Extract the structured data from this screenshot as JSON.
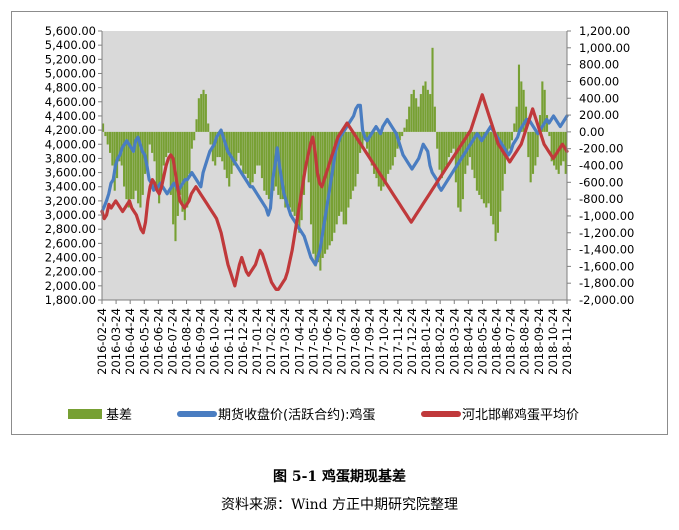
{
  "caption": "图 5-1  鸡蛋期现基差",
  "source": "资料来源：Wind  方正中期研究院整理",
  "chart_data": {
    "type": "line",
    "left_axis": {
      "min": 1800,
      "max": 5600,
      "step": 200,
      "tick_labels": [
        "1,800.00",
        "2,000.00",
        "2,200.00",
        "2,400.00",
        "2,600.00",
        "2,800.00",
        "3,000.00",
        "3,200.00",
        "3,400.00",
        "3,600.00",
        "3,800.00",
        "4,000.00",
        "4,200.00",
        "4,400.00",
        "4,600.00",
        "4,800.00",
        "5,000.00",
        "5,200.00",
        "5,400.00",
        "5,600.00"
      ]
    },
    "right_axis": {
      "min": -2000,
      "max": 1200,
      "step": 200,
      "tick_labels": [
        "-2,000.00",
        "-1,800.00",
        "-1,600.00",
        "-1,400.00",
        "-1,200.00",
        "-1,000.00",
        "-800.00",
        "-600.00",
        "-400.00",
        "-200.00",
        "0.00",
        "200.00",
        "400.00",
        "600.00",
        "800.00",
        "1,000.00",
        "1,200.00"
      ]
    },
    "x_labels": [
      "2016-02-24",
      "2016-03-24",
      "2016-04-24",
      "2016-05-24",
      "2016-06-24",
      "2016-07-24",
      "2016-08-24",
      "2016-09-24",
      "2016-10-24",
      "2016-11-24",
      "2016-12-24",
      "2017-01-24",
      "2017-02-24",
      "2017-03-24",
      "2017-04-24",
      "2017-05-24",
      "2017-06-24",
      "2017-07-24",
      "2017-08-24",
      "2017-09-24",
      "2017-10-24",
      "2017-11-24",
      "2017-12-24",
      "2018-01-24",
      "2018-02-24",
      "2018-03-24",
      "2018-04-24",
      "2018-05-24",
      "2018-06-24",
      "2018-07-24",
      "2018-08-24",
      "2018-09-24",
      "2018-10-24",
      "2018-11-24"
    ],
    "series": [
      {
        "name": "基差",
        "type": "bar",
        "axis": "right",
        "color": "#77a033",
        "values": [
          100,
          -50,
          -150,
          -250,
          -400,
          -700,
          -550,
          -350,
          -400,
          -650,
          -800,
          -900,
          -800,
          -800,
          -700,
          -850,
          -900,
          -750,
          -500,
          -400,
          -150,
          -250,
          -350,
          -650,
          -850,
          -650,
          -400,
          -300,
          -250,
          -750,
          -1100,
          -1300,
          -1000,
          -750,
          -950,
          -1050,
          -900,
          -500,
          -200,
          -100,
          150,
          400,
          450,
          500,
          450,
          100,
          -150,
          -350,
          -400,
          -300,
          -300,
          -350,
          -450,
          -550,
          -650,
          -500,
          -400,
          -350,
          -250,
          -400,
          -500,
          -500,
          -550,
          -650,
          -600,
          -500,
          -400,
          -400,
          -550,
          -700,
          -750,
          -800,
          -750,
          -700,
          -650,
          -750,
          -800,
          -800,
          -900,
          -850,
          -900,
          -950,
          -1000,
          -1150,
          -1200,
          -1050,
          -750,
          -350,
          -600,
          -1100,
          -1450,
          -1600,
          -1550,
          -1650,
          -1500,
          -1450,
          -1400,
          -1350,
          -1300,
          -1200,
          -1100,
          -1000,
          -950,
          -1100,
          -1100,
          -900,
          -800,
          -700,
          -650,
          -500,
          -250,
          -200,
          -100,
          -200,
          -300,
          -400,
          -500,
          -550,
          -650,
          -700,
          -650,
          -600,
          -500,
          -450,
          -400,
          -300,
          -200,
          -100,
          -50,
          50,
          150,
          300,
          450,
          500,
          400,
          300,
          450,
          550,
          600,
          500,
          450,
          1000,
          300,
          -200,
          -450,
          -550,
          -450,
          -400,
          -300,
          -250,
          -200,
          -600,
          -900,
          -950,
          -800,
          -500,
          -400,
          -300,
          -450,
          -550,
          -700,
          -750,
          -800,
          -850,
          -900,
          -850,
          -1000,
          -1100,
          -1300,
          -1200,
          -950,
          -700,
          -500,
          -300,
          -200,
          -100,
          100,
          300,
          800,
          600,
          500,
          300,
          -300,
          -600,
          -500,
          -400,
          -300,
          200,
          600,
          500,
          200,
          -50,
          -350,
          -400,
          -450,
          -500,
          -400,
          -350,
          -500
        ],
        "note": "values in right-axis units (daily basis)"
      },
      {
        "name": "期货收盘价(活跃合约):鸡蛋",
        "type": "line",
        "axis": "left",
        "color": "#4a7dc1",
        "values": [
          3050,
          3120,
          3200,
          3300,
          3450,
          3500,
          3700,
          3800,
          3850,
          3950,
          4000,
          4050,
          4000,
          3950,
          3900,
          4050,
          4100,
          4000,
          3900,
          3850,
          3700,
          3500,
          3450,
          3350,
          3400,
          3400,
          3450,
          3400,
          3350,
          3300,
          3350,
          3400,
          3450,
          3400,
          3350,
          3400,
          3450,
          3500,
          3500,
          3550,
          3600,
          3550,
          3500,
          3450,
          3400,
          3600,
          3700,
          3800,
          3900,
          3950,
          4000,
          4100,
          4150,
          4200,
          4100,
          4000,
          3900,
          3850,
          3800,
          3750,
          3700,
          3650,
          3600,
          3550,
          3500,
          3450,
          3400,
          3400,
          3350,
          3300,
          3250,
          3200,
          3150,
          3100,
          3000,
          3100,
          3500,
          3700,
          3950,
          3700,
          3500,
          3300,
          3200,
          3100,
          3000,
          2950,
          2900,
          2850,
          2800,
          2750,
          2700,
          2600,
          2500,
          2400,
          2350,
          2300,
          2400,
          2500,
          2700,
          2900,
          3100,
          3300,
          3500,
          3700,
          3900,
          4000,
          4100,
          4150,
          4200,
          4250,
          4300,
          4350,
          4400,
          4500,
          4550,
          4550,
          4200,
          4100,
          4050,
          4100,
          4150,
          4200,
          4250,
          4200,
          4150,
          4250,
          4300,
          4350,
          4300,
          4250,
          4200,
          4150,
          4050,
          3950,
          3850,
          3800,
          3750,
          3700,
          3650,
          3700,
          3750,
          3800,
          3900,
          4000,
          3950,
          3900,
          3700,
          3600,
          3550,
          3500,
          3400,
          3350,
          3400,
          3450,
          3500,
          3550,
          3600,
          3650,
          3700,
          3750,
          3800,
          3850,
          3900,
          3950,
          4000,
          4050,
          4100,
          4150,
          4100,
          4050,
          4100,
          4150,
          4200,
          4250,
          4200,
          4150,
          4100,
          4050,
          4000,
          3950,
          3900,
          3850,
          3900,
          4000,
          4050,
          4100,
          4200,
          4250,
          4300,
          4350,
          4350,
          4300,
          4250,
          4200,
          4150,
          4200,
          4250,
          4300,
          4350,
          4300,
          4350,
          4400,
          4350,
          4300,
          4250,
          4300,
          4350,
          4400
        ]
      },
      {
        "name": "河北邯郸鸡蛋平均价",
        "type": "line",
        "axis": "left",
        "color": "#c0393b",
        "values": [
          3050,
          2950,
          3000,
          3150,
          3100,
          3150,
          3200,
          3150,
          3100,
          3050,
          3100,
          3150,
          3200,
          3100,
          3050,
          3000,
          2900,
          2800,
          2750,
          2900,
          3200,
          3400,
          3500,
          3450,
          3350,
          3300,
          3400,
          3550,
          3700,
          3800,
          3850,
          3800,
          3600,
          3400,
          3200,
          3150,
          3100,
          3150,
          3200,
          3300,
          3350,
          3400,
          3350,
          3300,
          3250,
          3200,
          3150,
          3100,
          3050,
          3000,
          2950,
          2850,
          2750,
          2600,
          2450,
          2300,
          2200,
          2100,
          2000,
          2150,
          2300,
          2400,
          2300,
          2200,
          2150,
          2200,
          2250,
          2300,
          2400,
          2500,
          2450,
          2350,
          2250,
          2150,
          2050,
          2000,
          1950,
          1950,
          2000,
          2050,
          2100,
          2200,
          2350,
          2500,
          2700,
          2900,
          3100,
          3300,
          3500,
          3700,
          3850,
          4000,
          4100,
          3900,
          3600,
          3450,
          3400,
          3500,
          3600,
          3700,
          3800,
          3900,
          4000,
          4100,
          4150,
          4200,
          4250,
          4300,
          4250,
          4200,
          4150,
          4100,
          4050,
          4000,
          3950,
          3900,
          3850,
          3800,
          3750,
          3700,
          3650,
          3600,
          3550,
          3500,
          3450,
          3400,
          3350,
          3300,
          3250,
          3200,
          3150,
          3100,
          3050,
          3000,
          2950,
          2900,
          2950,
          3000,
          3050,
          3100,
          3150,
          3200,
          3250,
          3300,
          3350,
          3400,
          3450,
          3500,
          3550,
          3600,
          3650,
          3700,
          3750,
          3800,
          3850,
          3900,
          3950,
          4000,
          4050,
          4100,
          4150,
          4200,
          4300,
          4400,
          4500,
          4600,
          4700,
          4600,
          4500,
          4400,
          4300,
          4200,
          4100,
          4000,
          3950,
          3900,
          3850,
          3800,
          3750,
          3800,
          3850,
          3900,
          3950,
          4000,
          4100,
          4200,
          4300,
          4400,
          4500,
          4400,
          4300,
          4200,
          4100,
          4000,
          3950,
          3900,
          3850,
          3800,
          3850,
          3900,
          3950,
          4000,
          3950,
          3900
        ]
      }
    ],
    "legend": {
      "position": "bottom",
      "entries": [
        "基差",
        "期货收盘价(活跃合约):鸡蛋",
        "河北邯郸鸡蛋平均价"
      ]
    },
    "grid": false,
    "plot_background": "#d9d9d9"
  }
}
